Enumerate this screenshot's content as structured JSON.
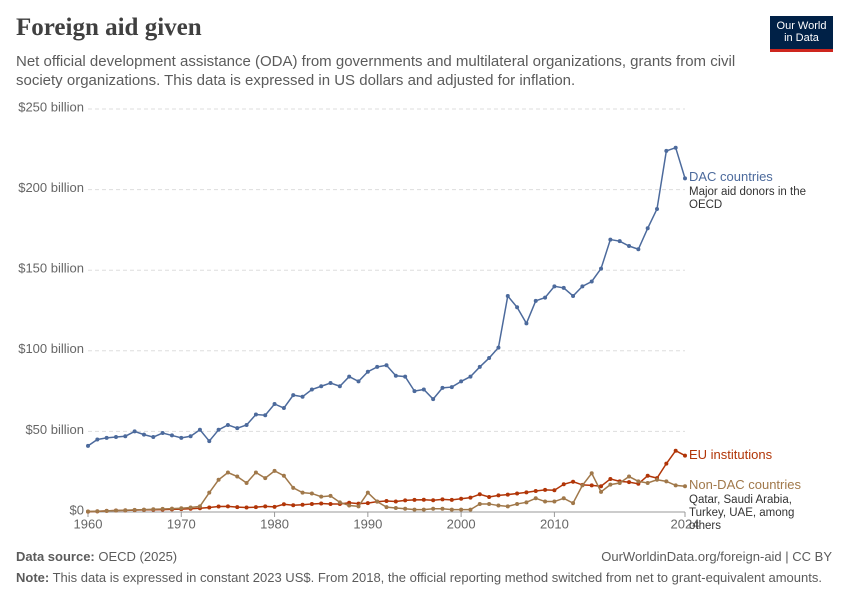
{
  "chart_data": {
    "type": "line",
    "title": "Foreign aid given",
    "subtitle": "Net official development assistance (ODA) from governments and multilateral organizations, grants from civil society organizations. This data is expressed in US dollars and adjusted for inflation.",
    "logo": [
      "Our World",
      "in Data"
    ],
    "x": [
      1960,
      1961,
      1962,
      1963,
      1964,
      1965,
      1966,
      1967,
      1968,
      1969,
      1970,
      1971,
      1972,
      1973,
      1974,
      1975,
      1976,
      1977,
      1978,
      1979,
      1980,
      1981,
      1982,
      1983,
      1984,
      1985,
      1986,
      1987,
      1988,
      1989,
      1990,
      1991,
      1992,
      1993,
      1994,
      1995,
      1996,
      1997,
      1998,
      1999,
      2000,
      2001,
      2002,
      2003,
      2004,
      2005,
      2006,
      2007,
      2008,
      2009,
      2010,
      2011,
      2012,
      2013,
      2014,
      2015,
      2016,
      2017,
      2018,
      2019,
      2020,
      2021,
      2022,
      2023,
      2024
    ],
    "series": [
      {
        "name": "DAC countries",
        "description": "Major aid donors in the OECD",
        "color": "#4c6a9c",
        "values": [
          41,
          45,
          46,
          46.5,
          47,
          50,
          48,
          46.5,
          49,
          47.5,
          46,
          47,
          51,
          44,
          51,
          54,
          52,
          54,
          60.5,
          60,
          67,
          64.5,
          72.5,
          71.5,
          76,
          78,
          80,
          78,
          84,
          81,
          87,
          90,
          91,
          84.5,
          84,
          75,
          76,
          70,
          77,
          77.5,
          81,
          84,
          90,
          95.5,
          102,
          134,
          127,
          117,
          131,
          133,
          140,
          139,
          134,
          140,
          143,
          151,
          169,
          168,
          165,
          163,
          176,
          188,
          224,
          226,
          207
        ]
      },
      {
        "name": "EU institutions",
        "color": "#b13507",
        "values": [
          0.2,
          0.4,
          0.7,
          0.9,
          1,
          1.2,
          1.3,
          1.4,
          1.5,
          1.6,
          1.8,
          2,
          2.3,
          2.8,
          3.4,
          3.5,
          3,
          2.8,
          3,
          3.5,
          3.2,
          4.8,
          4.2,
          4.5,
          5,
          5.3,
          5,
          5,
          5.7,
          5.2,
          5.5,
          6.4,
          6.8,
          6.5,
          7.2,
          7.5,
          7.6,
          7.3,
          7.8,
          7.5,
          8.2,
          8.9,
          11,
          9.3,
          10.3,
          10.8,
          11.5,
          12.2,
          13,
          13.7,
          13.5,
          17.2,
          18.8,
          16.8,
          16.5,
          16,
          20.5,
          19,
          18.5,
          17.5,
          22.5,
          21,
          30,
          38,
          35
        ]
      },
      {
        "name": "Non-DAC countries",
        "description": "Qatar, Saudi Arabia, Turkey, UAE, among others",
        "color": "#a0784a",
        "values": [
          0.3,
          0.5,
          0.7,
          0.9,
          1.1,
          1.3,
          1.5,
          1.7,
          1.9,
          2.1,
          2.3,
          2.8,
          3.5,
          12,
          20,
          24.5,
          22,
          18,
          24.5,
          21,
          25.5,
          22.5,
          15,
          12,
          11.5,
          9.5,
          10,
          6,
          4,
          3.5,
          12,
          6.5,
          3,
          2.5,
          2,
          1.5,
          1.5,
          2,
          2,
          1.5,
          1.5,
          1.5,
          5,
          5,
          4,
          3.5,
          5,
          6,
          8.5,
          6.5,
          6.5,
          8.5,
          5.5,
          16.5,
          24,
          12.5,
          17,
          18,
          22,
          19,
          18,
          20,
          19,
          16.5,
          16
        ]
      }
    ],
    "xlim": [
      1960,
      2024
    ],
    "xticks": [
      1960,
      1970,
      1980,
      1990,
      2000,
      2010,
      2024
    ],
    "ylim": [
      0,
      250
    ],
    "yticks": [
      {
        "value": 0,
        "label": "$0"
      },
      {
        "value": 50,
        "label": "$50 billion"
      },
      {
        "value": 100,
        "label": "$100 billion"
      },
      {
        "value": 150,
        "label": "$150 billion"
      },
      {
        "value": 200,
        "label": "$200 billion"
      },
      {
        "value": 250,
        "label": "$250 billion"
      }
    ],
    "grid": true,
    "source_label": "Data source:",
    "source": "OECD (2025)",
    "url": "OurWorldinData.org/foreign-aid | CC BY",
    "note_label": "Note:",
    "note": "This data is expressed in constant 2023 US$. From 2018, the official reporting method switched from net to grant-equivalent amounts."
  }
}
